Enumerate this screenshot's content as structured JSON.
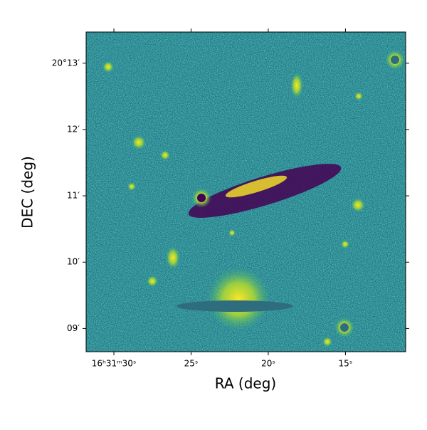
{
  "chart_data": {
    "type": "image",
    "xlabel": "RA (deg)",
    "ylabel": "DEC (deg)",
    "xlim": [
      31.8,
      11.1
    ],
    "ylim": [
      8.65,
      13.47
    ],
    "xticks": [
      {
        "value": 30,
        "label": "16ʰ31ᵐ30ˢ"
      },
      {
        "value": 25,
        "label": "25ˢ"
      },
      {
        "value": 20,
        "label": "20ˢ"
      },
      {
        "value": 15,
        "label": "15ˢ"
      }
    ],
    "yticks": [
      {
        "value": 13,
        "label": "20°13′"
      },
      {
        "value": 12,
        "label": "12′"
      },
      {
        "value": 11,
        "label": "11′"
      },
      {
        "value": 10,
        "label": "10′"
      },
      {
        "value": 9,
        "label": "09′"
      }
    ]
  }
}
